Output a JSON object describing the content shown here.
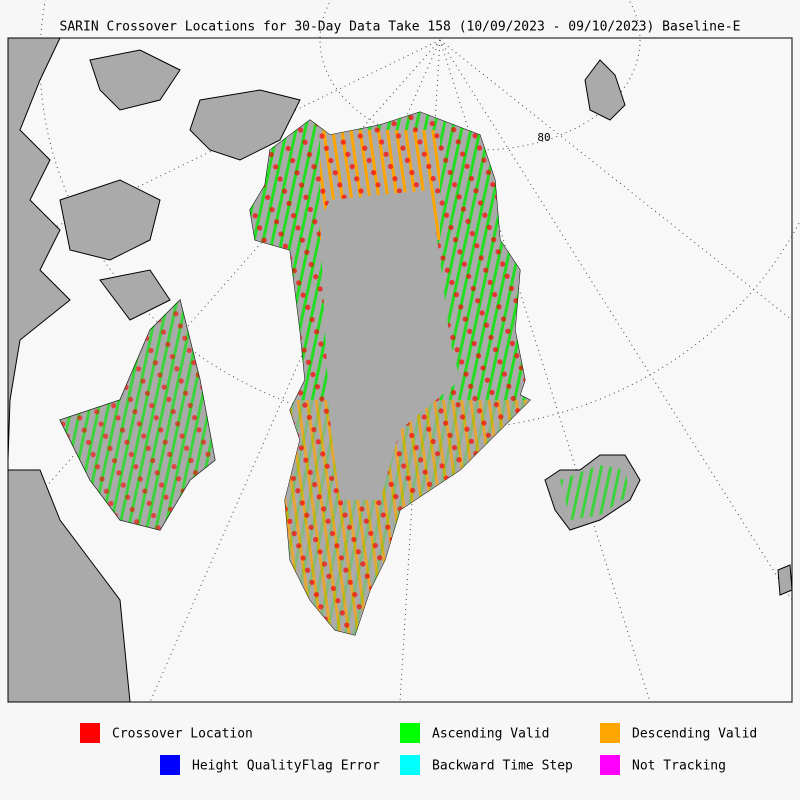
{
  "header": {
    "title": "SARIN Crossover Locations for 30-Day Data Take 158 (10/09/2023 - 09/10/2023) Baseline-E"
  },
  "map": {
    "latitude_label": "80"
  },
  "legend": {
    "items": [
      {
        "label": "Crossover Location",
        "color": "#ff0000"
      },
      {
        "label": "Ascending Valid",
        "color": "#00ff00"
      },
      {
        "label": "Descending Valid",
        "color": "#ffa500"
      },
      {
        "label": "Height QualityFlag Error",
        "color": "#0000ff"
      },
      {
        "label": "Backward Time Step",
        "color": "#00ffff"
      },
      {
        "label": "Not Tracking",
        "color": "#ff00ff"
      }
    ]
  }
}
